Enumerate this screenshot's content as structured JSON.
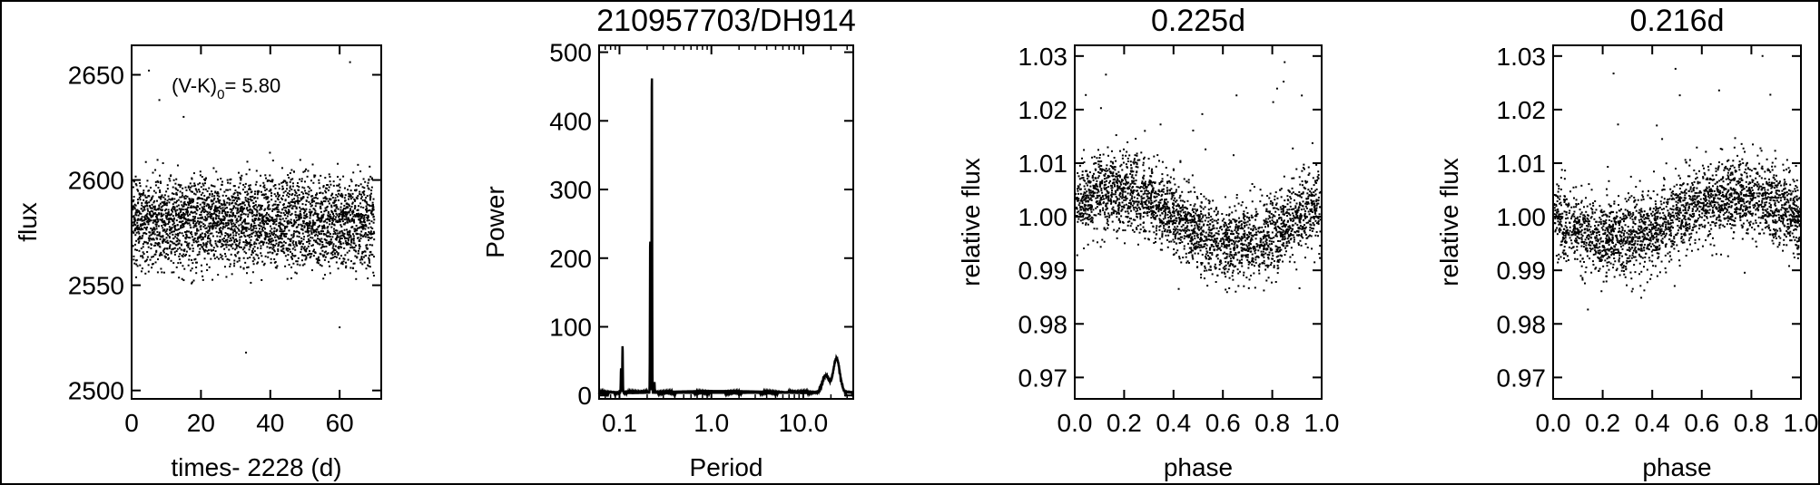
{
  "chart_data": [
    {
      "type": "scatter",
      "title": "",
      "annotation": "(V-K)0= 5.80",
      "xlabel": "times- 2228 (d)",
      "ylabel": "flux",
      "xlim": [
        0,
        72
      ],
      "ylim": [
        2496,
        2664
      ],
      "xticks": [
        "0",
        "20",
        "40",
        "60"
      ],
      "yticks": [
        "2500",
        "2550",
        "2600",
        "2650"
      ],
      "x_tick_values": [
        0,
        20,
        40,
        60
      ],
      "y_tick_values": [
        2500,
        2550,
        2600,
        2650
      ],
      "series": [
        {
          "model": "flux ~ 2580 + 10*sin(2*pi*t/0.225), scatter ~8",
          "n_points": 3200,
          "outliers": [
            [
              5,
              2652
            ],
            [
              8,
              2638
            ],
            [
              15,
              2630
            ],
            [
              33,
              2518
            ],
            [
              60,
              2530
            ],
            [
              63,
              2656
            ]
          ]
        }
      ]
    },
    {
      "type": "line",
      "title": "210957703/DH914",
      "xlabel": "Period",
      "ylabel": "Power",
      "xscale": "log",
      "xlim": [
        0.06,
        35
      ],
      "ylim": [
        -5,
        510
      ],
      "xticks": [
        "0.1",
        "1.0",
        "10.0"
      ],
      "yticks": [
        "0",
        "100",
        "200",
        "300",
        "400",
        "500"
      ],
      "x_tick_values": [
        0.1,
        1.0,
        10.0
      ],
      "y_tick_values": [
        0,
        100,
        200,
        300,
        400,
        500
      ],
      "peaks": [
        {
          "period": 0.108,
          "power": 70
        },
        {
          "period": 0.104,
          "power": 35
        },
        {
          "period": 0.216,
          "power": 230
        },
        {
          "period": 0.225,
          "power": 480
        },
        {
          "period": 0.24,
          "power": 15
        },
        {
          "period": 17.5,
          "power": 25
        },
        {
          "period": 23.0,
          "power": 50
        }
      ]
    },
    {
      "type": "scatter",
      "title": "0.225d",
      "xlabel": "phase",
      "ylabel": "relative flux",
      "xlim": [
        0.0,
        1.0
      ],
      "ylim": [
        0.966,
        1.032
      ],
      "xticks": [
        "0.0",
        "0.2",
        "0.4",
        "0.6",
        "0.8",
        "1.0"
      ],
      "yticks": [
        "0.97",
        "0.98",
        "0.99",
        "1.00",
        "1.01",
        "1.02",
        "1.03"
      ],
      "x_tick_values": [
        0.0,
        0.2,
        0.4,
        0.6,
        0.8,
        1.0
      ],
      "y_tick_values": [
        0.97,
        0.98,
        0.99,
        1.0,
        1.01,
        1.02,
        1.03
      ],
      "series": [
        {
          "model": "relflux ~ 1.0 + 0.005*cos(2*pi*(phase-0.15)), scatter ~0.0035",
          "n_points": 2600
        }
      ]
    },
    {
      "type": "scatter",
      "title": "0.216d",
      "xlabel": "phase",
      "ylabel": "relative flux",
      "xlim": [
        0.0,
        1.0
      ],
      "ylim": [
        0.966,
        1.032
      ],
      "xticks": [
        "0.0",
        "0.2",
        "0.4",
        "0.6",
        "0.8",
        "1.0"
      ],
      "yticks": [
        "0.97",
        "0.98",
        "0.99",
        "1.00",
        "1.01",
        "1.02",
        "1.03"
      ],
      "x_tick_values": [
        0.0,
        0.2,
        0.4,
        0.6,
        0.8,
        1.0
      ],
      "y_tick_values": [
        0.97,
        0.98,
        0.99,
        1.0,
        1.01,
        1.02,
        1.03
      ],
      "series": [
        {
          "model": "relflux ~ 1.0 - 0.004*cos(2*pi*(phase-0.25)), scatter ~0.0037",
          "n_points": 2600
        }
      ]
    }
  ]
}
